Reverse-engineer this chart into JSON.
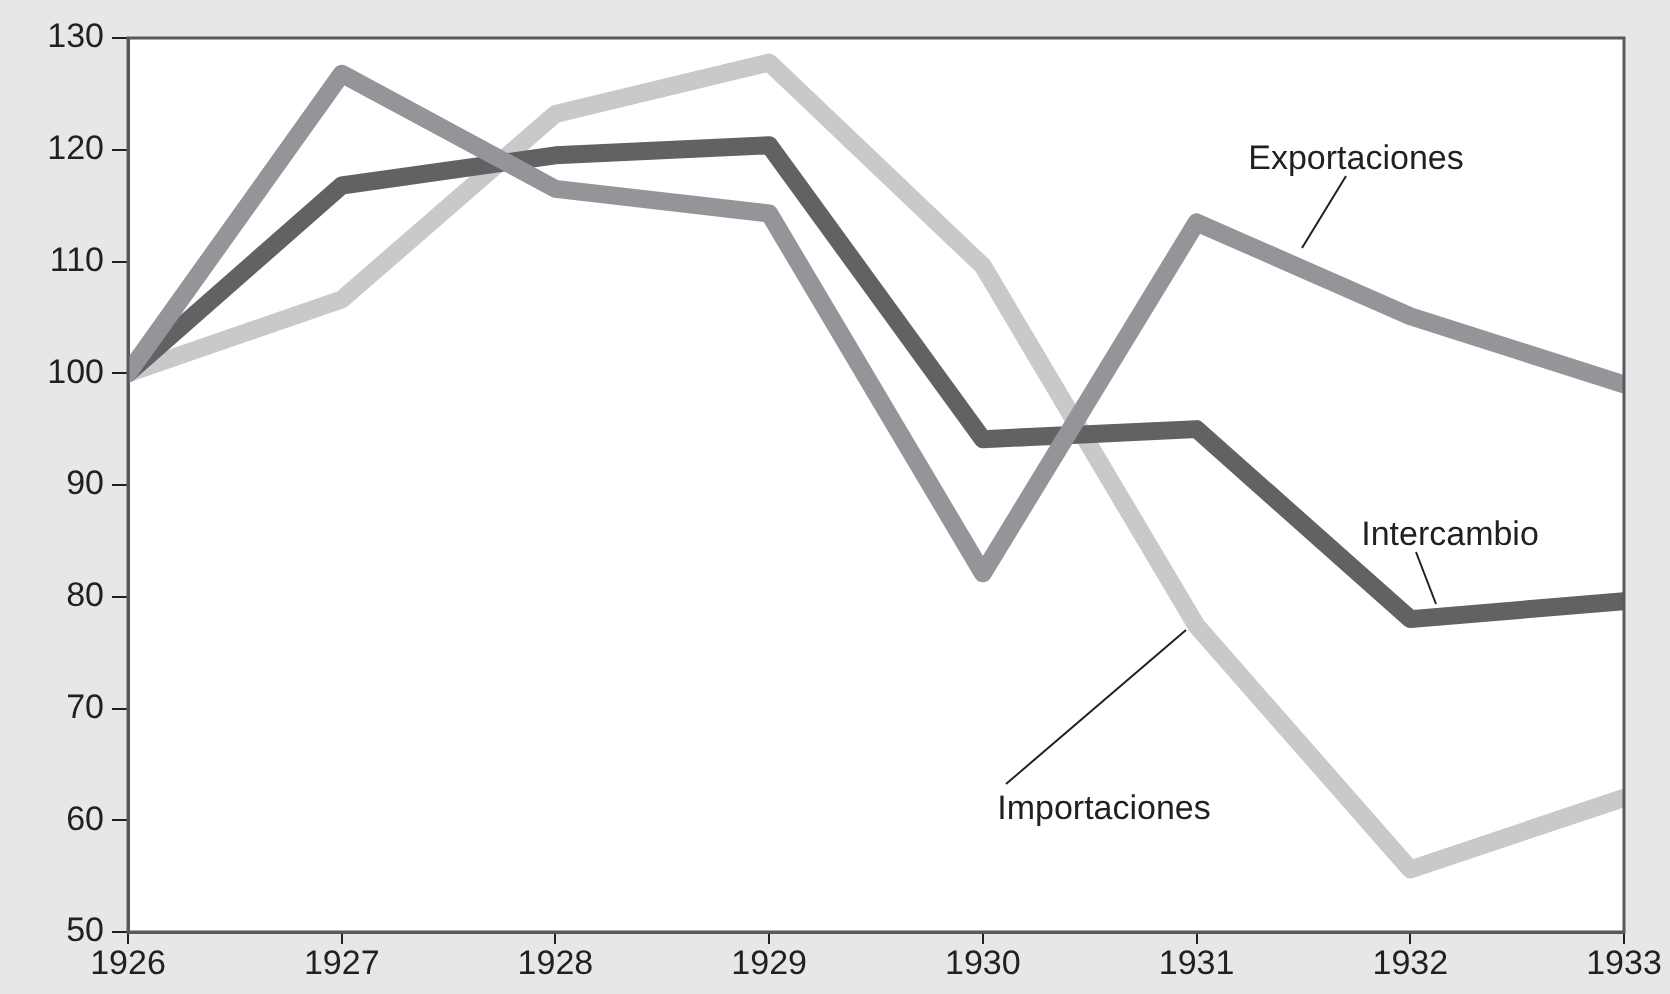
{
  "chart_data": {
    "type": "line",
    "x": [
      1926,
      1927,
      1928,
      1929,
      1930,
      1931,
      1932,
      1933
    ],
    "series": [
      {
        "name": "Exportaciones",
        "color": "#939598",
        "values": [
          100,
          126.8,
          116.5,
          114.3,
          82.1,
          113.5,
          105.1,
          99
        ]
      },
      {
        "name": "Intercambio",
        "color": "#616264",
        "values": [
          100,
          116.8,
          119.5,
          120.4,
          94.1,
          95,
          78,
          79.6
        ]
      },
      {
        "name": "Importaciones",
        "color": "#c8c9ca",
        "values": [
          100,
          106.6,
          123.2,
          127.8,
          109.6,
          77.4,
          55.6,
          62
        ]
      }
    ],
    "xlim": [
      1926,
      1933
    ],
    "xticks": [
      1926,
      1927,
      1928,
      1929,
      1930,
      1931,
      1932,
      1933
    ],
    "ylim": [
      50,
      130
    ],
    "yticks": [
      50,
      60,
      70,
      80,
      90,
      100,
      110,
      120,
      130
    ],
    "grid": false,
    "legend": false,
    "marker": "none",
    "line_style": "solid"
  }
}
